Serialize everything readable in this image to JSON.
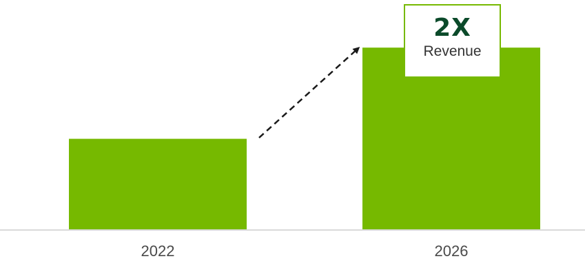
{
  "chart_data": {
    "type": "bar",
    "categories": [
      "2022",
      "2026"
    ],
    "values": [
      1,
      2
    ],
    "ylim": [
      0,
      2.22
    ],
    "grid": false,
    "colors": {
      "bar": "#76b900",
      "baseline": "#d9d9d9",
      "arrow": "#1a1a1a"
    },
    "annotation": {
      "value": "2X",
      "label": "Revenue",
      "target_category": "2026",
      "border_color": "#76b900",
      "value_color": "#0b4a2a"
    }
  }
}
